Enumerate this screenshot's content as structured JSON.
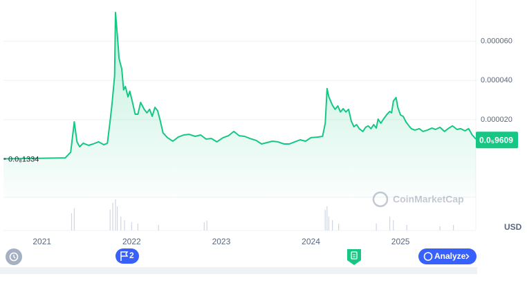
{
  "chart_data": {
    "type": "line",
    "x": [
      2020.57,
      2021.26,
      2021.32,
      2021.36,
      2021.39,
      2021.42,
      2021.46,
      2021.52,
      2021.57,
      2021.63,
      2021.69,
      2021.73,
      2021.76,
      2021.78,
      2021.81,
      2021.82,
      2021.84,
      2021.86,
      2021.89,
      2021.91,
      2021.93,
      2021.96,
      2021.98,
      2022.01,
      2022.04,
      2022.07,
      2022.1,
      2022.14,
      2022.17,
      2022.2,
      2022.23,
      2022.26,
      2022.29,
      2022.32,
      2022.35,
      2022.4,
      2022.46,
      2022.52,
      2022.58,
      2022.64,
      2022.71,
      2022.77,
      2022.83,
      2022.89,
      2022.95,
      2023.02,
      2023.08,
      2023.14,
      2023.2,
      2023.26,
      2023.32,
      2023.39,
      2023.45,
      2023.51,
      2023.57,
      2023.63,
      2023.7,
      2023.76,
      2023.82,
      2023.88,
      2023.94,
      2024.0,
      2024.07,
      2024.13,
      2024.16,
      2024.18,
      2024.2,
      2024.24,
      2024.27,
      2024.3,
      2024.33,
      2024.36,
      2024.39,
      2024.42,
      2024.45,
      2024.48,
      2024.51,
      2024.54,
      2024.58,
      2024.61,
      2024.64,
      2024.67,
      2024.7,
      2024.73,
      2024.75,
      2024.78,
      2024.81,
      2024.85,
      2024.88,
      2024.9,
      2024.92,
      2024.95,
      2024.97,
      2025.0,
      2025.03,
      2025.06,
      2025.09,
      2025.12,
      2025.16,
      2025.21,
      2025.25,
      2025.3,
      2025.35,
      2025.39,
      2025.44,
      2025.49,
      2025.53,
      2025.58,
      2025.63,
      2025.67,
      2025.72,
      2025.76,
      2025.8,
      2025.84
    ],
    "series": [
      {
        "color": "#16c784",
        "values": [
          1.334e-09,
          5e-07,
          3.4e-06,
          1.89e-05,
          8.7e-06,
          6.2e-06,
          8e-06,
          6.9e-06,
          7.6e-06,
          8.7e-06,
          7.2e-06,
          8e-06,
          1.93e-05,
          2.74e-05,
          4.22e-05,
          7.47e-05,
          6.34e-05,
          5.11e-05,
          4.58e-05,
          3.52e-05,
          3.69e-05,
          3.16e-05,
          3.45e-05,
          2.88e-05,
          2.28e-05,
          2.28e-05,
          2.88e-05,
          2.53e-05,
          2.35e-05,
          2.53e-05,
          2.17e-05,
          2.63e-05,
          2.46e-05,
          1.93e-05,
          1.33e-05,
          1.08e-05,
          9e-06,
          1.11e-05,
          1.22e-05,
          1.25e-05,
          1.15e-05,
          1.22e-05,
          1.01e-05,
          1.04e-05,
          8.7e-06,
          1.08e-05,
          1.18e-05,
          1.4e-05,
          1.18e-05,
          1.15e-05,
          1.04e-05,
          9.4e-06,
          7.6e-06,
          8.3e-06,
          9e-06,
          8.7e-06,
          7.6e-06,
          7.6e-06,
          8.7e-06,
          9.7e-06,
          9e-06,
          1.08e-05,
          1.11e-05,
          1.15e-05,
          1.82e-05,
          3.59e-05,
          3.16e-05,
          2.74e-05,
          2.53e-05,
          2.7e-05,
          2.39e-05,
          2.56e-05,
          2.39e-05,
          2.53e-05,
          1.93e-05,
          1.64e-05,
          1.75e-05,
          1.54e-05,
          1.4e-05,
          1.61e-05,
          1.68e-05,
          1.54e-05,
          1.75e-05,
          1.57e-05,
          2.03e-05,
          1.82e-05,
          2.03e-05,
          2.28e-05,
          2.42e-05,
          2.35e-05,
          2.95e-05,
          3.13e-05,
          2.63e-05,
          2.24e-05,
          2.17e-05,
          1.89e-05,
          1.71e-05,
          1.54e-05,
          1.47e-05,
          1.54e-05,
          1.4e-05,
          1.47e-05,
          1.57e-05,
          1.5e-05,
          1.61e-05,
          1.4e-05,
          1.54e-05,
          1.68e-05,
          1.5e-05,
          1.54e-05,
          1.43e-05,
          1.54e-05,
          1.22e-05,
          1.01e-05
        ]
      }
    ],
    "xlim": [
      2020.57,
      2025.84
    ],
    "xticks": [
      2021,
      2022,
      2023,
      2024,
      2025
    ],
    "ylim": [
      -1.96e-05,
      7.93e-05
    ],
    "yticks": [
      {
        "value": 2e-05,
        "label": "0.000020"
      },
      {
        "value": 4e-05,
        "label": "0.000040"
      },
      {
        "value": 6e-05,
        "label": "0.000060"
      }
    ],
    "start_price": {
      "value": 1.334e-09,
      "label": "0.0₈1334"
    },
    "current_price": {
      "value": 9.609e-06,
      "label": "0.0₅9609",
      "color": "#16c784"
    },
    "currency": "USD",
    "volume": {
      "color": "#cfd6e4",
      "ylim": [
        0,
        45
      ],
      "x": [
        2021.33,
        2021.36,
        2021.76,
        2021.79,
        2021.82,
        2021.84,
        2021.88,
        2021.92,
        2022.0,
        2022.07,
        2022.3,
        2022.81,
        2022.84,
        2024.16,
        2024.18,
        2024.2,
        2024.24,
        2024.31,
        2024.73,
        2024.88,
        2024.92,
        2025.07,
        2025.44,
        2025.59
      ],
      "values": [
        25,
        32,
        30,
        40,
        45,
        35,
        20,
        15,
        12,
        10,
        8,
        12,
        14,
        30,
        35,
        20,
        15,
        10,
        10,
        20,
        15,
        8,
        6,
        8
      ]
    }
  },
  "ui": {
    "watermark": "CoinMarketCap",
    "flag_count": "2",
    "analyze_button": "Analyze"
  }
}
